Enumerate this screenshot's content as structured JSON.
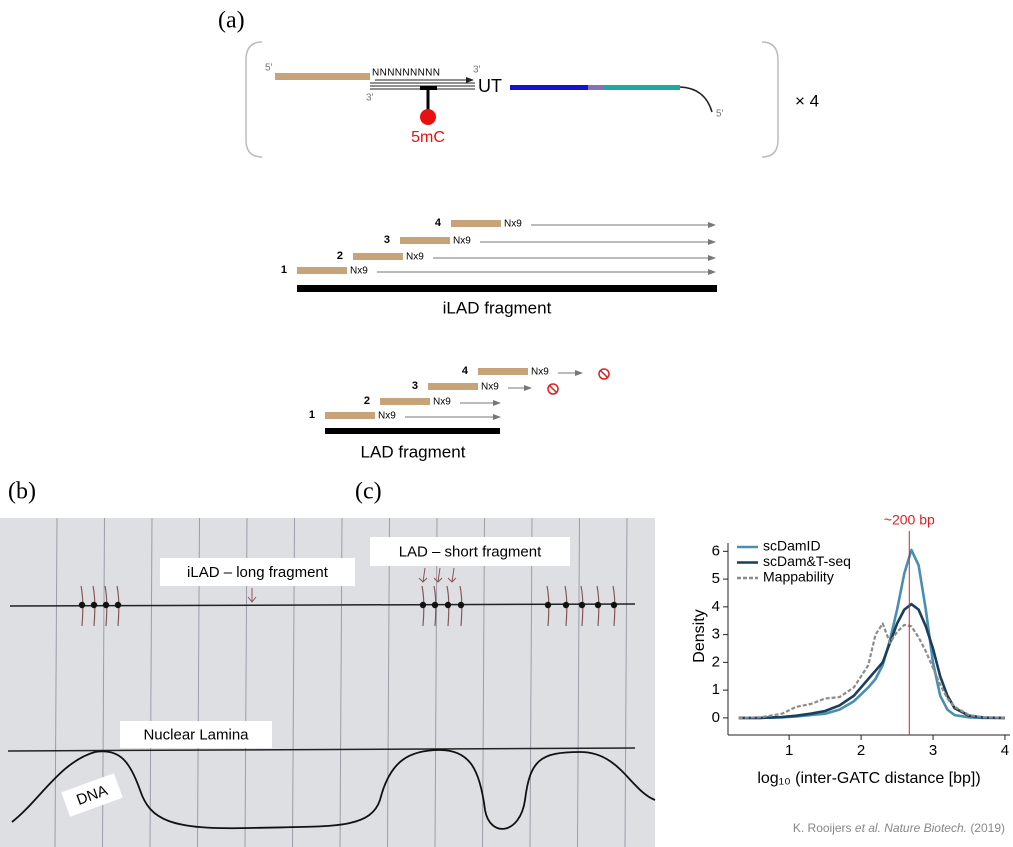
{
  "panel_a": {
    "label": "(a)",
    "adapter": {
      "five_prime_left": "5'",
      "random_primer": "NNNNNNNNN",
      "three_prime_top": "3'",
      "three_prime_bottom": "3'",
      "ut": "UT",
      "modification": "5mC",
      "five_prime_right": "5'",
      "multiplier": "× 4"
    },
    "ilad": {
      "primers": [
        {
          "number": "1",
          "label": "Nx9"
        },
        {
          "number": "2",
          "label": "Nx9"
        },
        {
          "number": "3",
          "label": "Nx9"
        },
        {
          "number": "4",
          "label": "Nx9"
        }
      ],
      "caption": "iLAD fragment"
    },
    "lad": {
      "primers": [
        {
          "number": "1",
          "label": "Nx9"
        },
        {
          "number": "2",
          "label": "Nx9"
        },
        {
          "number": "3",
          "label": "Nx9"
        },
        {
          "number": "4",
          "label": "Nx9"
        }
      ],
      "caption": "LAD fragment"
    }
  },
  "panel_b": {
    "label": "(b)",
    "labels": {
      "ilad": "iLAD – long fragment",
      "lad": "LAD – short fragment",
      "lamina": "Nuclear Lamina",
      "dna": "DNA"
    }
  },
  "panel_c": {
    "label": "(c)",
    "citation": {
      "authors": "K. Rooijers",
      "etal": "et al.",
      "journal": "Nature Biotech.",
      "year": "(2019)"
    }
  },
  "chart_data": {
    "type": "line",
    "x_label": "log₁₀ (inter-GATC distance [bp])",
    "y_label": "Density",
    "x": [
      0.3,
      0.6,
      0.9,
      1.1,
      1.3,
      1.5,
      1.7,
      1.9,
      2.1,
      2.2,
      2.3,
      2.4,
      2.5,
      2.6,
      2.7,
      2.8,
      2.9,
      3.0,
      3.1,
      3.2,
      3.3,
      3.5,
      3.7,
      4.0
    ],
    "series": [
      {
        "name": "scDamID",
        "color": "#4a8fb0",
        "dashed": false,
        "values": [
          0,
          0,
          0.02,
          0.05,
          0.1,
          0.15,
          0.3,
          0.6,
          1.1,
          1.4,
          1.9,
          2.8,
          3.9,
          5.2,
          6.05,
          5.5,
          3.9,
          2.0,
          0.8,
          0.3,
          0.1,
          0.02,
          0,
          0
        ]
      },
      {
        "name": "scDam&T-seq",
        "color": "#1a3e5c",
        "dashed": false,
        "values": [
          0,
          0,
          0.03,
          0.08,
          0.15,
          0.25,
          0.45,
          0.8,
          1.4,
          1.7,
          2.0,
          2.7,
          3.4,
          3.9,
          4.1,
          3.9,
          3.3,
          2.5,
          1.5,
          0.8,
          0.35,
          0.08,
          0.01,
          0
        ]
      },
      {
        "name": "Mappability",
        "color": "#8c8c8c",
        "dashed": true,
        "values": [
          0,
          0.02,
          0.15,
          0.4,
          0.5,
          0.7,
          0.75,
          1.1,
          1.9,
          3.0,
          3.4,
          2.7,
          3.1,
          3.35,
          3.3,
          2.9,
          2.4,
          1.8,
          1.2,
          0.7,
          0.4,
          0.1,
          0.02,
          0
        ]
      }
    ],
    "reference_line": {
      "x": 2.67,
      "label": "~200 bp",
      "color": "#e02020"
    },
    "xlim": [
      0.15,
      4.07
    ],
    "ylim": [
      -0.4,
      6.3
    ],
    "xticks": [
      1,
      2,
      3,
      4
    ],
    "yticks": [
      0,
      1,
      2,
      3,
      4,
      5,
      6
    ]
  }
}
